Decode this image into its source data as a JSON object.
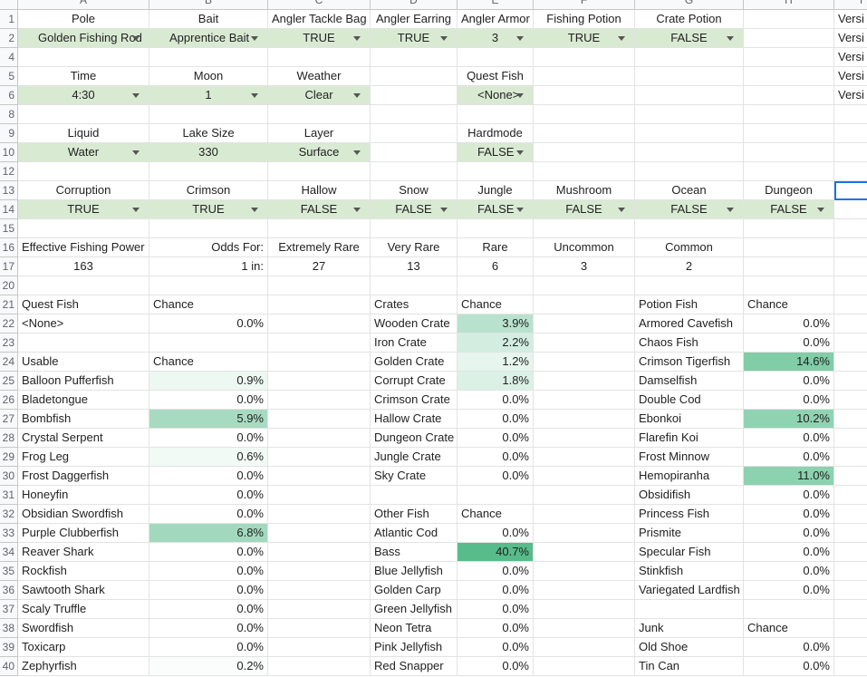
{
  "column_headers": [
    "A",
    "B",
    "C",
    "D",
    "E",
    "F",
    "G",
    "H",
    "I"
  ],
  "rows": [
    {
      "number": "1",
      "cells": [
        "Pole",
        "Bait",
        "Angler Tackle Bag",
        "Angler Earring",
        "Angler Armor",
        "Fishing Potion",
        "Crate Potion",
        null,
        "Versi"
      ]
    },
    {
      "number": "2",
      "cells": [
        {
          "text": "Golden Fishing Rod",
          "dropdown": true,
          "fill": "#d9ead3"
        },
        {
          "text": "Apprentice Bait",
          "dropdown": true,
          "fill": "#d9ead3"
        },
        {
          "text": "TRUE",
          "dropdown": true,
          "fill": "#d9ead3"
        },
        {
          "text": "TRUE",
          "dropdown": true,
          "fill": "#d9ead3"
        },
        {
          "text": "3",
          "dropdown": true,
          "fill": "#d9ead3"
        },
        {
          "text": "TRUE",
          "dropdown": true,
          "fill": "#d9ead3"
        },
        {
          "text": "FALSE",
          "dropdown": true,
          "fill": "#d9ead3"
        },
        null,
        "Versi"
      ]
    },
    {
      "number": "4",
      "cells": [
        null,
        null,
        null,
        null,
        null,
        null,
        null,
        null,
        "Versi"
      ]
    },
    {
      "number": "5",
      "cells": [
        "Time",
        "Moon",
        "Weather",
        null,
        "Quest Fish",
        null,
        null,
        null,
        "Versi"
      ]
    },
    {
      "number": "6",
      "cells": [
        {
          "text": "4:30",
          "dropdown": true,
          "fill": "#d9ead3"
        },
        {
          "text": "1",
          "dropdown": true,
          "fill": "#d9ead3"
        },
        {
          "text": "Clear",
          "dropdown": true,
          "fill": "#d9ead3"
        },
        null,
        {
          "text": "<None>",
          "dropdown": true,
          "fill": "#d9ead3"
        },
        null,
        null,
        null,
        "Versi"
      ]
    },
    {
      "number": "8",
      "cells": [
        null,
        null,
        null,
        null,
        null,
        null,
        null,
        null,
        null
      ]
    },
    {
      "number": "9",
      "cells": [
        "Liquid",
        "Lake Size",
        "Layer",
        null,
        "Hardmode",
        null,
        null,
        null,
        null
      ]
    },
    {
      "number": "10",
      "cells": [
        {
          "text": "Water",
          "dropdown": true,
          "fill": "#d9ead3"
        },
        {
          "text": "330",
          "fill": "#d9ead3"
        },
        {
          "text": "Surface",
          "dropdown": true,
          "fill": "#d9ead3"
        },
        null,
        {
          "text": "FALSE",
          "dropdown": true,
          "fill": "#d9ead3"
        },
        null,
        null,
        null,
        null
      ]
    },
    {
      "number": "12",
      "cells": [
        null,
        null,
        null,
        null,
        null,
        null,
        null,
        null,
        null
      ]
    },
    {
      "number": "13",
      "cells": [
        "Corruption",
        "Crimson",
        "Hallow",
        "Snow",
        "Jungle",
        "Mushroom",
        "Ocean",
        "Dungeon",
        {
          "selected": true
        }
      ]
    },
    {
      "number": "14",
      "cells": [
        {
          "text": "TRUE",
          "dropdown": true,
          "fill": "#d9ead3"
        },
        {
          "text": "TRUE",
          "dropdown": true,
          "fill": "#d9ead3"
        },
        {
          "text": "FALSE",
          "dropdown": true,
          "fill": "#d9ead3"
        },
        {
          "text": "FALSE",
          "dropdown": true,
          "fill": "#d9ead3"
        },
        {
          "text": "FALSE",
          "dropdown": true,
          "fill": "#d9ead3"
        },
        {
          "text": "FALSE",
          "dropdown": true,
          "fill": "#d9ead3"
        },
        {
          "text": "FALSE",
          "dropdown": true,
          "fill": "#d9ead3"
        },
        {
          "text": "FALSE",
          "dropdown": true,
          "fill": "#d9ead3"
        },
        null
      ]
    },
    {
      "number": "15",
      "cells": [
        null,
        null,
        null,
        null,
        null,
        null,
        null,
        null,
        null
      ]
    },
    {
      "number": "16",
      "cells": [
        "Effective Fishing Power",
        "Odds For:",
        "Extremely Rare",
        "Very Rare",
        "Rare",
        "Uncommon",
        "Common",
        null,
        null
      ]
    },
    {
      "number": "17",
      "cells": [
        "163",
        "1 in:",
        "27",
        "13",
        "6",
        "3",
        "2",
        null,
        null
      ]
    },
    {
      "number": "20",
      "cells": [
        null,
        null,
        null,
        null,
        null,
        null,
        null,
        null,
        null
      ]
    },
    {
      "number": "21",
      "cells": [
        "Quest Fish",
        "Chance",
        null,
        "Crates",
        "Chance",
        null,
        "Potion Fish",
        "Chance",
        null
      ]
    },
    {
      "number": "22",
      "cells": [
        "<None>",
        "0.0%",
        null,
        "Wooden Crate",
        {
          "text": "3.9%",
          "fill": "#b9e2ce"
        },
        null,
        "Armored Cavefish",
        "0.0%",
        null
      ]
    },
    {
      "number": "23",
      "cells": [
        null,
        null,
        null,
        "Iron Crate",
        {
          "text": "2.2%",
          "fill": "#d3eee1"
        },
        null,
        "Chaos Fish",
        "0.0%",
        null
      ]
    },
    {
      "number": "24",
      "cells": [
        "Usable",
        "Chance",
        null,
        "Golden Crate",
        {
          "text": "1.2%",
          "fill": "#e6f5ed"
        },
        null,
        "Crimson Tigerfish",
        {
          "text": "14.6%",
          "fill": "#80cda8"
        },
        null
      ]
    },
    {
      "number": "25",
      "cells": [
        "Balloon Pufferfish",
        {
          "text": "0.9%",
          "fill": "#eef8f3"
        },
        null,
        "Corrupt Crate",
        {
          "text": "1.8%",
          "fill": "#dbf1e6"
        },
        null,
        "Damselfish",
        "0.0%",
        null
      ]
    },
    {
      "number": "26",
      "cells": [
        "Bladetongue",
        "0.0%",
        null,
        "Crimson Crate",
        "0.0%",
        null,
        "Double Cod",
        "0.0%",
        null
      ]
    },
    {
      "number": "27",
      "cells": [
        "Bombfish",
        {
          "text": "5.9%",
          "fill": "#a7dbc1"
        },
        null,
        "Hallow Crate",
        "0.0%",
        null,
        "Ebonkoi",
        {
          "text": "10.2%",
          "fill": "#90d3b3"
        },
        null
      ]
    },
    {
      "number": "28",
      "cells": [
        "Crystal Serpent",
        "0.0%",
        null,
        "Dungeon Crate",
        "0.0%",
        null,
        "Flarefin Koi",
        "0.0%",
        null
      ]
    },
    {
      "number": "29",
      "cells": [
        "Frog Leg",
        {
          "text": "0.6%",
          "fill": "#f2faf6"
        },
        null,
        "Jungle Crate",
        "0.0%",
        null,
        "Frost Minnow",
        "0.0%",
        null
      ]
    },
    {
      "number": "30",
      "cells": [
        "Frost Daggerfish",
        "0.0%",
        null,
        "Sky Crate",
        "0.0%",
        null,
        "Hemopiranha",
        {
          "text": "11.0%",
          "fill": "#8cd1b0"
        },
        null
      ]
    },
    {
      "number": "31",
      "cells": [
        "Honeyfin",
        "0.0%",
        null,
        null,
        null,
        null,
        "Obsidifish",
        "0.0%",
        null
      ]
    },
    {
      "number": "32",
      "cells": [
        "Obsidian Swordfish",
        "0.0%",
        null,
        "Other Fish",
        "Chance",
        null,
        "Princess Fish",
        "0.0%",
        null
      ]
    },
    {
      "number": "33",
      "cells": [
        "Purple Clubberfish",
        {
          "text": "6.8%",
          "fill": "#a2d9be"
        },
        null,
        "Atlantic Cod",
        "0.0%",
        null,
        "Prismite",
        "0.0%",
        null
      ]
    },
    {
      "number": "34",
      "cells": [
        "Reaver Shark",
        "0.0%",
        null,
        "Bass",
        {
          "text": "40.7%",
          "fill": "#57bb8a"
        },
        null,
        "Specular Fish",
        "0.0%",
        null
      ]
    },
    {
      "number": "35",
      "cells": [
        "Rockfish",
        "0.0%",
        null,
        "Blue Jellyfish",
        "0.0%",
        null,
        "Stinkfish",
        "0.0%",
        null
      ]
    },
    {
      "number": "36",
      "cells": [
        "Sawtooth Shark",
        "0.0%",
        null,
        "Golden Carp",
        "0.0%",
        null,
        "Variegated Lardfish",
        "0.0%",
        null
      ]
    },
    {
      "number": "37",
      "cells": [
        "Scaly Truffle",
        "0.0%",
        null,
        "Green Jellyfish",
        "0.0%",
        null,
        null,
        null,
        null
      ]
    },
    {
      "number": "38",
      "cells": [
        "Swordfish",
        "0.0%",
        null,
        "Neon Tetra",
        "0.0%",
        null,
        "Junk",
        "Chance",
        null
      ]
    },
    {
      "number": "39",
      "cells": [
        "Toxicarp",
        "0.0%",
        null,
        "Pink Jellyfish",
        "0.0%",
        null,
        "Old Shoe",
        "0.0%",
        null
      ]
    },
    {
      "number": "40",
      "cells": [
        "Zephyrfish",
        {
          "text": "0.2%",
          "fill": "#fafdfb"
        },
        null,
        "Red Snapper",
        "0.0%",
        null,
        "Tin Can",
        "0.0%",
        null
      ]
    }
  ]
}
